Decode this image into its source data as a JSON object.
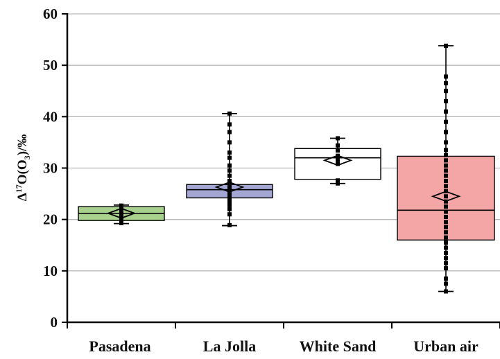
{
  "chart_data": {
    "type": "box",
    "title": "",
    "ylabel": {
      "prefix": "Δ",
      "sup": "17",
      "mid": "O(O",
      "sub": "3",
      "suffix": ")/‰"
    },
    "xlabel": "",
    "ylim": [
      0,
      60
    ],
    "yticks": [
      0,
      10,
      20,
      30,
      40,
      50,
      60
    ],
    "grid": true,
    "categories": [
      "Pasadena",
      "La Jolla",
      "White Sand",
      "Urban air"
    ],
    "boxes": [
      {
        "category": "Pasadena",
        "min": 19.2,
        "q1": 19.8,
        "median": 21.2,
        "q3": 22.5,
        "max": 22.8,
        "mean": 21.2,
        "color": "#a9d18e",
        "points": [
          19.3,
          19.6,
          20.0,
          20.8,
          21.2,
          21.6,
          22.0,
          22.3,
          22.7
        ]
      },
      {
        "category": "La Jolla",
        "min": 18.8,
        "q1": 24.2,
        "median": 25.8,
        "q3": 26.8,
        "max": 40.6,
        "mean": 26.3,
        "color": "#a4a7d3",
        "points": [
          18.9,
          21.0,
          22.0,
          22.8,
          23.5,
          24.0,
          24.5,
          25.0,
          25.5,
          26.0,
          26.5,
          27.0,
          27.5,
          28.5,
          29.5,
          30.5,
          32.0,
          33.0,
          35.0,
          37.0,
          38.5,
          40.6
        ]
      },
      {
        "category": "White Sand",
        "min": 27.0,
        "q1": 27.8,
        "median": 32.0,
        "q3": 33.8,
        "max": 35.8,
        "mean": 31.5,
        "color": "#ffffff",
        "points": [
          27.0,
          27.6,
          30.8,
          31.6,
          32.4,
          33.4,
          34.4,
          35.8
        ]
      },
      {
        "category": "Urban air",
        "min": 6.0,
        "q1": 16.0,
        "median": 21.8,
        "q3": 32.3,
        "max": 53.8,
        "mean": 24.5,
        "color": "#f4a6a6",
        "points": [
          6.0,
          7.5,
          8.5,
          10.5,
          11.5,
          12.5,
          13.5,
          14.5,
          15.5,
          16.5,
          17.5,
          18.5,
          19.5,
          20.5,
          21.5,
          22.5,
          23.5,
          24.5,
          25.5,
          26.5,
          27.5,
          28.5,
          29.5,
          30.5,
          31.5,
          32.5,
          33.5,
          35.0,
          37.0,
          39.0,
          41.0,
          43.0,
          45.0,
          46.5,
          47.8,
          53.8
        ]
      }
    ]
  }
}
